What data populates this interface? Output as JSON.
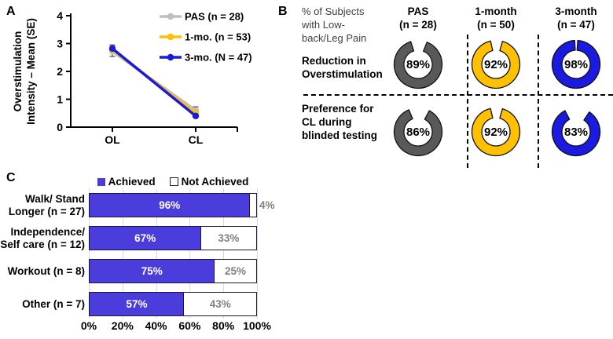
{
  "figure": {
    "panel_a_label": "A",
    "panel_b_label": "B",
    "panel_c_label": "C"
  },
  "colors": {
    "pas_gray_line": "#BFBFBF",
    "one_month_gold": "#FFC000",
    "three_month_blue": "#1A1AE0",
    "pas_donut_gray": "#595959",
    "achieved_blue_violet": "#4B3DDB",
    "bar_border_navy": "#1C1650",
    "not_achieved_text_gray": "#808080",
    "gridline_gray": "#D9D9D9"
  },
  "chart_data": [
    {
      "id": "overstimulation-line-chart",
      "type": "line",
      "categories": [
        "OL",
        "CL"
      ],
      "ylabel_line1": "Overstimulation",
      "ylabel_line2": "Intensity – Mean (SE)",
      "ylim": [
        0,
        4
      ],
      "yticks": [
        0,
        1,
        2,
        3,
        4
      ],
      "legend_position": "top-right",
      "grid": false,
      "series": [
        {
          "name": "PAS (n = 28)",
          "color": "#BFBFBF",
          "values": [
            2.72,
            0.6
          ],
          "se": [
            0.18,
            0.13
          ]
        },
        {
          "name": "1-mo. (n = 53)",
          "color": "#FFC000",
          "values": [
            2.78,
            0.5
          ],
          "se": [
            0.1,
            0.06
          ]
        },
        {
          "name": "3-mo. (N = 47)",
          "color": "#1A1AE0",
          "values": [
            2.82,
            0.4
          ],
          "se": [
            0.13,
            0.05
          ]
        }
      ]
    },
    {
      "id": "pain-subjects-donut-grid",
      "type": "pie",
      "header": "% of Subjects with Low-back/Leg Pain",
      "header_lines": [
        "% of Subjects",
        "with Low-",
        "back/Leg Pain"
      ],
      "columns": [
        {
          "label_line1": "PAS",
          "label_line2": "(n = 28)",
          "color": "#595959"
        },
        {
          "label_line1": "1-month",
          "label_line2": "(n = 50)",
          "color": "#FFC000"
        },
        {
          "label_line1": "3-month",
          "label_line2": "(n = 47)",
          "color": "#1A1AE0"
        }
      ],
      "rows": [
        {
          "label": "Reduction in Overstimulation",
          "label_lines": [
            "Reduction in",
            "Overstimulation"
          ],
          "values": [
            89,
            92,
            98
          ]
        },
        {
          "label": "Preference for CL during blinded testing",
          "label_lines": [
            "Preference for",
            "CL during",
            "blinded testing"
          ],
          "values": [
            86,
            92,
            83
          ]
        }
      ],
      "value_suffix": "%"
    },
    {
      "id": "goals-stacked-bar-chart",
      "type": "bar",
      "stacked": true,
      "orientation": "horizontal",
      "legend": [
        {
          "label": "Achieved",
          "color": "#4B3DDB"
        },
        {
          "label": "Not Achieved",
          "color": "#FFFFFF"
        }
      ],
      "categories": [
        {
          "name": "Walk/ Stand Longer (n = 27)",
          "lines": [
            "Walk/ Stand",
            "Longer (n = 27)"
          ]
        },
        {
          "name": "Independence/ Self care (n = 12)",
          "lines": [
            "Independence/",
            "Self care (n = 12)"
          ]
        },
        {
          "name": "Workout (n = 8)",
          "lines": [
            "Workout (n = 8)"
          ]
        },
        {
          "name": "Other (n = 7)",
          "lines": [
            "Other (n = 7)"
          ]
        }
      ],
      "series": [
        {
          "name": "Achieved",
          "values": [
            96,
            67,
            75,
            57
          ]
        },
        {
          "name": "Not Achieved",
          "values": [
            4,
            33,
            25,
            43
          ]
        }
      ],
      "value_suffix": "%",
      "xticks": [
        "0%",
        "20%",
        "40%",
        "60%",
        "80%",
        "100%"
      ],
      "xlim": [
        0,
        100
      ]
    }
  ]
}
